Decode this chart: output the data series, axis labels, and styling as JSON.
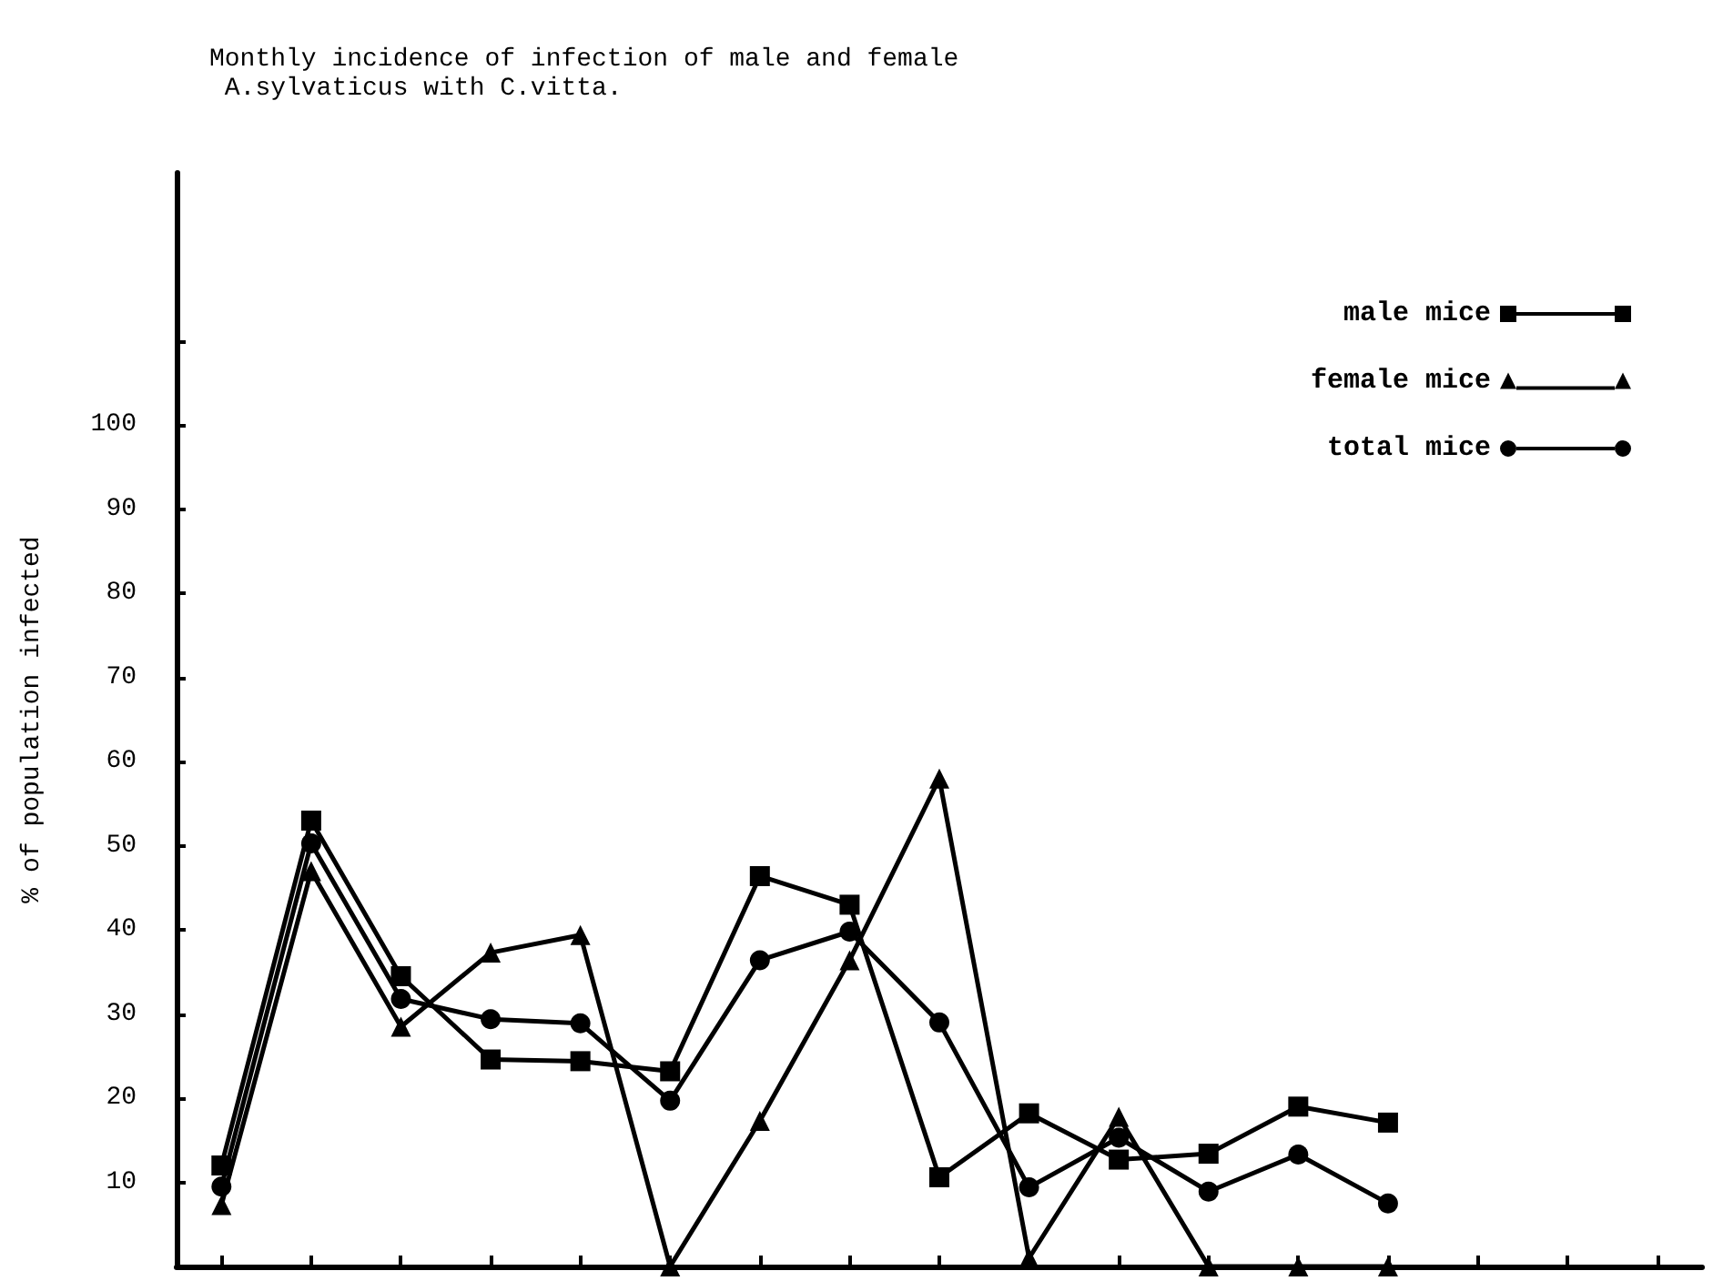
{
  "chart_data": {
    "type": "line",
    "title": "Monthly incidence of infection of male and female A.sylvaticus with C.vitta.",
    "ylabel": "% of population infected",
    "categories": [
      null,
      null,
      null,
      null,
      null,
      null,
      null,
      null,
      null,
      null,
      null,
      null,
      null,
      null,
      null,
      null,
      null
    ],
    "series": [
      {
        "name": "male mice",
        "color": "#000000",
        "marker": "square",
        "values": [
          12,
          53,
          34.5,
          24.6,
          24.4,
          23.2,
          46.4,
          43,
          10.6,
          18.2,
          12.7,
          13.4,
          19,
          17.1,
          null,
          null,
          null
        ]
      },
      {
        "name": "female mice",
        "color": "#000000",
        "marker": "triangle",
        "values": [
          7.3,
          47,
          28.5,
          37.3,
          39.4,
          0,
          17.3,
          36.4,
          58,
          1,
          17.8,
          0,
          0,
          0,
          null,
          null,
          null
        ]
      },
      {
        "name": "total mice",
        "color": "#000000",
        "marker": "circle",
        "values": [
          9.5,
          50.3,
          31.8,
          29.4,
          28.9,
          19.7,
          36.4,
          39.8,
          29,
          9.4,
          15.3,
          8.9,
          13.3,
          7.5,
          null,
          null,
          null
        ]
      }
    ],
    "ylim": [
      0,
      130
    ],
    "yticks": [
      10,
      20,
      30,
      40,
      50,
      60,
      70,
      80,
      90,
      100,
      {
        "value": 110,
        "label": null
      }
    ],
    "grid": false,
    "legend": "top right",
    "line_style": "solid"
  }
}
